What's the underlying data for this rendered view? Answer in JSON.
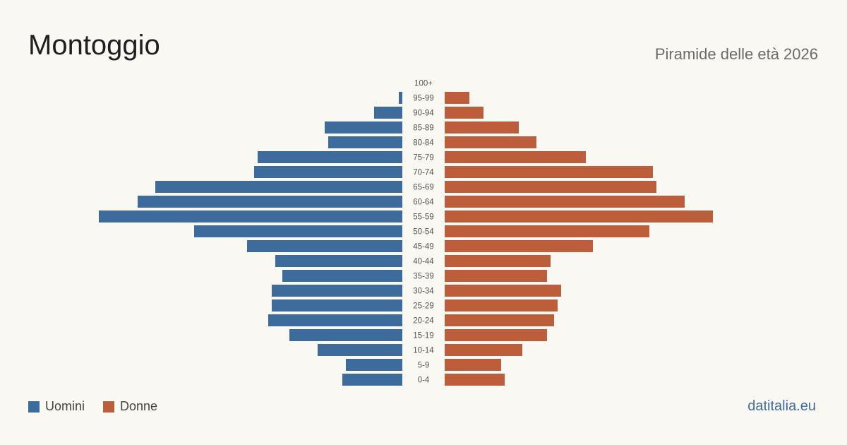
{
  "header": {
    "title": "Montoggio",
    "subtitle": "Piramide delle età 2026"
  },
  "footer": {
    "brand": "datitalia.eu"
  },
  "colors": {
    "men": "#3d6b9c",
    "women": "#bc5e3c",
    "background": "#faf8f3",
    "brand": "#3d6b9c"
  },
  "chart_data": {
    "type": "bar",
    "orientation": "horizontal-pyramid",
    "categories": [
      "100+",
      "95-99",
      "90-94",
      "85-89",
      "80-84",
      "75-79",
      "70-74",
      "65-69",
      "60-64",
      "55-59",
      "50-54",
      "45-49",
      "40-44",
      "35-39",
      "30-34",
      "25-29",
      "20-24",
      "15-19",
      "10-14",
      "5-9",
      "0-4"
    ],
    "series": [
      {
        "name": "Uomini",
        "side": "left",
        "values": [
          0,
          1,
          8,
          22,
          21,
          41,
          42,
          70,
          75,
          86,
          59,
          44,
          36,
          34,
          37,
          37,
          38,
          32,
          24,
          16,
          17
        ]
      },
      {
        "name": "Donne",
        "side": "right",
        "values": [
          0,
          7,
          11,
          21,
          26,
          40,
          59,
          60,
          68,
          76,
          58,
          42,
          30,
          29,
          33,
          32,
          31,
          29,
          22,
          16,
          17
        ]
      }
    ],
    "legend": "bottom-left"
  }
}
